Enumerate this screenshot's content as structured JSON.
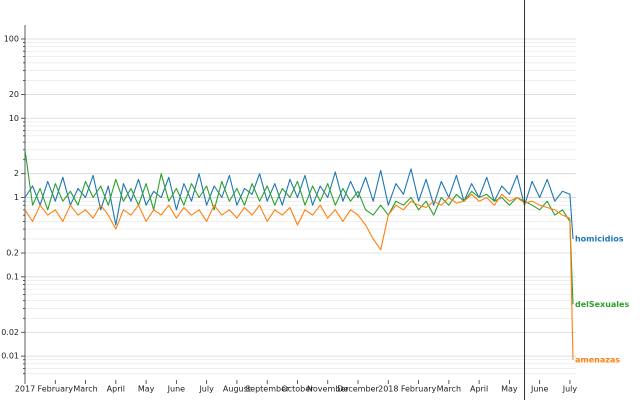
{
  "chart_data": {
    "type": "line",
    "log_y": true,
    "grid": true,
    "xlim": [
      0,
      18.2
    ],
    "ylim": [
      0.005,
      150
    ],
    "xticks": [
      {
        "value": 0,
        "label": "2017"
      },
      {
        "value": 1,
        "label": "February"
      },
      {
        "value": 2,
        "label": "March"
      },
      {
        "value": 3,
        "label": "April"
      },
      {
        "value": 4,
        "label": "May"
      },
      {
        "value": 5,
        "label": "June"
      },
      {
        "value": 6,
        "label": "July"
      },
      {
        "value": 7,
        "label": "August"
      },
      {
        "value": 8,
        "label": "September"
      },
      {
        "value": 9,
        "label": "October"
      },
      {
        "value": 10,
        "label": "November"
      },
      {
        "value": 11,
        "label": "December"
      },
      {
        "value": 12,
        "label": "2018"
      },
      {
        "value": 13,
        "label": "February"
      },
      {
        "value": 14,
        "label": "March"
      },
      {
        "value": 15,
        "label": "April"
      },
      {
        "value": 16,
        "label": "May"
      },
      {
        "value": 17,
        "label": "June"
      },
      {
        "value": 18,
        "label": "July"
      }
    ],
    "yticks": [
      100,
      20,
      10,
      2,
      1,
      0.2,
      0.1,
      0.02,
      0.01
    ],
    "yminor": [
      90,
      80,
      70,
      60,
      50,
      40,
      30,
      9,
      8,
      7,
      6,
      5,
      4,
      3,
      0.9,
      0.8,
      0.7,
      0.6,
      0.5,
      0.4,
      0.3,
      0.09,
      0.08,
      0.07,
      0.06,
      0.05,
      0.04,
      0.03,
      0.009,
      0.008,
      0.007,
      0.006
    ],
    "vline": 16.5,
    "x": [
      0,
      0.25,
      0.5,
      0.75,
      1,
      1.25,
      1.5,
      1.75,
      2,
      2.25,
      2.5,
      2.75,
      3,
      3.25,
      3.5,
      3.75,
      4,
      4.25,
      4.5,
      4.75,
      5,
      5.25,
      5.5,
      5.75,
      6,
      6.25,
      6.5,
      6.75,
      7,
      7.25,
      7.5,
      7.75,
      8,
      8.25,
      8.5,
      8.75,
      9,
      9.25,
      9.5,
      9.75,
      10,
      10.25,
      10.5,
      10.75,
      11,
      11.25,
      11.5,
      11.75,
      12,
      12.25,
      12.5,
      12.75,
      13,
      13.25,
      13.5,
      13.75,
      14,
      14.25,
      14.5,
      14.75,
      15,
      15.25,
      15.5,
      15.75,
      16,
      16.25,
      16.5,
      16.75,
      17,
      17.25,
      17.5,
      17.75,
      18,
      18.1
    ],
    "series": [
      {
        "name": "homicidios",
        "color": "#1f77b4",
        "values": [
          1.0,
          1.4,
          0.8,
          1.6,
          0.9,
          1.8,
          0.8,
          1.3,
          1.0,
          1.9,
          0.7,
          1.4,
          0.45,
          1.5,
          0.9,
          1.7,
          0.8,
          1.2,
          1.0,
          1.8,
          0.7,
          1.5,
          0.9,
          2.0,
          0.8,
          1.4,
          1.0,
          1.9,
          0.8,
          1.3,
          1.1,
          2.0,
          0.9,
          1.5,
          0.8,
          1.7,
          1.0,
          1.9,
          0.8,
          1.4,
          1.0,
          2.1,
          0.9,
          1.6,
          1.0,
          1.8,
          0.9,
          2.2,
          0.8,
          1.5,
          1.1,
          2.3,
          0.9,
          1.7,
          0.8,
          1.6,
          1.0,
          1.9,
          0.9,
          1.5,
          1.0,
          1.8,
          0.9,
          1.4,
          1.1,
          1.9,
          0.8,
          1.6,
          1.0,
          1.7,
          0.9,
          1.2,
          1.1,
          0.3
        ]
      },
      {
        "name": "delSexuales",
        "color": "#2ca02c",
        "values": [
          4.0,
          0.8,
          1.3,
          0.7,
          1.5,
          0.9,
          1.2,
          0.8,
          1.6,
          1.0,
          1.4,
          0.8,
          1.7,
          0.9,
          1.3,
          0.8,
          1.5,
          0.7,
          2.0,
          0.9,
          1.3,
          0.8,
          1.5,
          1.0,
          1.4,
          0.7,
          1.6,
          0.9,
          1.3,
          0.8,
          1.5,
          0.9,
          1.4,
          0.8,
          1.3,
          1.0,
          1.6,
          0.8,
          1.4,
          0.9,
          1.5,
          0.8,
          1.3,
          0.9,
          1.2,
          0.7,
          0.6,
          0.8,
          0.6,
          0.9,
          0.8,
          1.0,
          0.7,
          0.9,
          0.6,
          1.0,
          0.8,
          1.1,
          0.9,
          1.2,
          1.0,
          1.1,
          0.9,
          1.0,
          0.8,
          1.0,
          0.9,
          0.8,
          0.7,
          0.9,
          0.6,
          0.7,
          0.5,
          0.045
        ]
      },
      {
        "name": "amenazas",
        "color": "#ff7f0e",
        "values": [
          0.7,
          0.5,
          0.8,
          0.6,
          0.7,
          0.5,
          0.8,
          0.6,
          0.7,
          0.55,
          0.8,
          0.6,
          0.4,
          0.7,
          0.6,
          0.8,
          0.5,
          0.7,
          0.6,
          0.8,
          0.55,
          0.75,
          0.6,
          0.7,
          0.5,
          0.8,
          0.6,
          0.7,
          0.55,
          0.75,
          0.6,
          0.8,
          0.5,
          0.7,
          0.6,
          0.75,
          0.45,
          0.7,
          0.6,
          0.8,
          0.55,
          0.7,
          0.5,
          0.7,
          0.6,
          0.45,
          0.3,
          0.22,
          0.6,
          0.8,
          0.7,
          0.9,
          0.8,
          0.75,
          0.9,
          0.8,
          1.0,
          0.85,
          0.9,
          1.1,
          0.9,
          1.0,
          0.8,
          1.1,
          0.9,
          1.0,
          0.85,
          0.9,
          0.8,
          0.75,
          0.7,
          0.6,
          0.55,
          0.009
        ]
      }
    ]
  }
}
